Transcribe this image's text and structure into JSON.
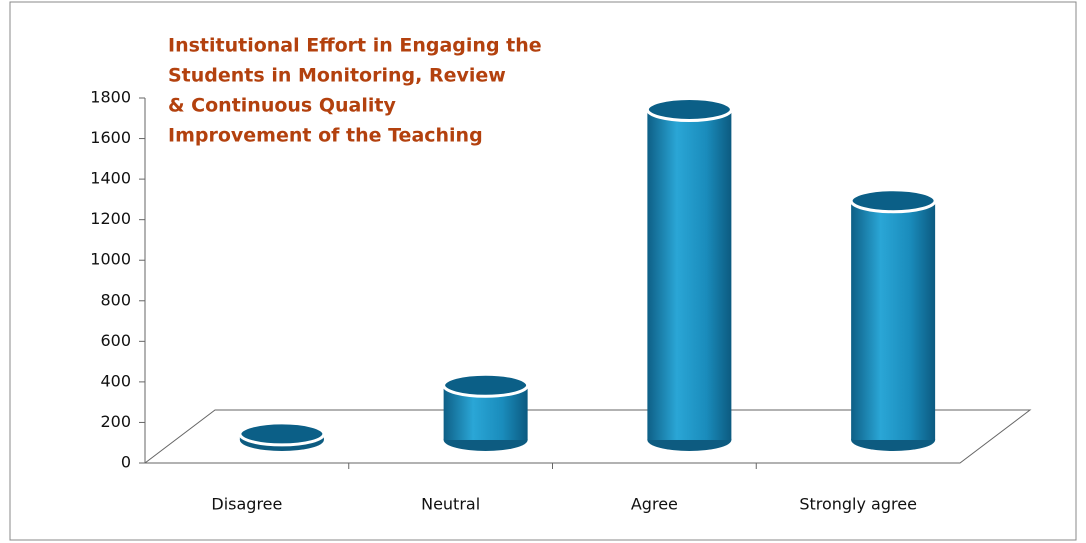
{
  "chart_data": {
    "type": "bar",
    "title": [
      "Institutional Effort in Engaging the",
      "Students in Monitoring, Review",
      "& Continuous Quality",
      " Improvement of the Teaching"
    ],
    "categories": [
      "Disagree",
      "Neutral",
      "Agree",
      "Strongly agree"
    ],
    "values": [
      30,
      270,
      1630,
      1180
    ],
    "color": "#1b8dbd",
    "ylim": [
      0,
      1800
    ],
    "yticks": [
      0,
      200,
      400,
      600,
      800,
      1000,
      1200,
      1400,
      1600,
      1800
    ],
    "grid": false
  }
}
